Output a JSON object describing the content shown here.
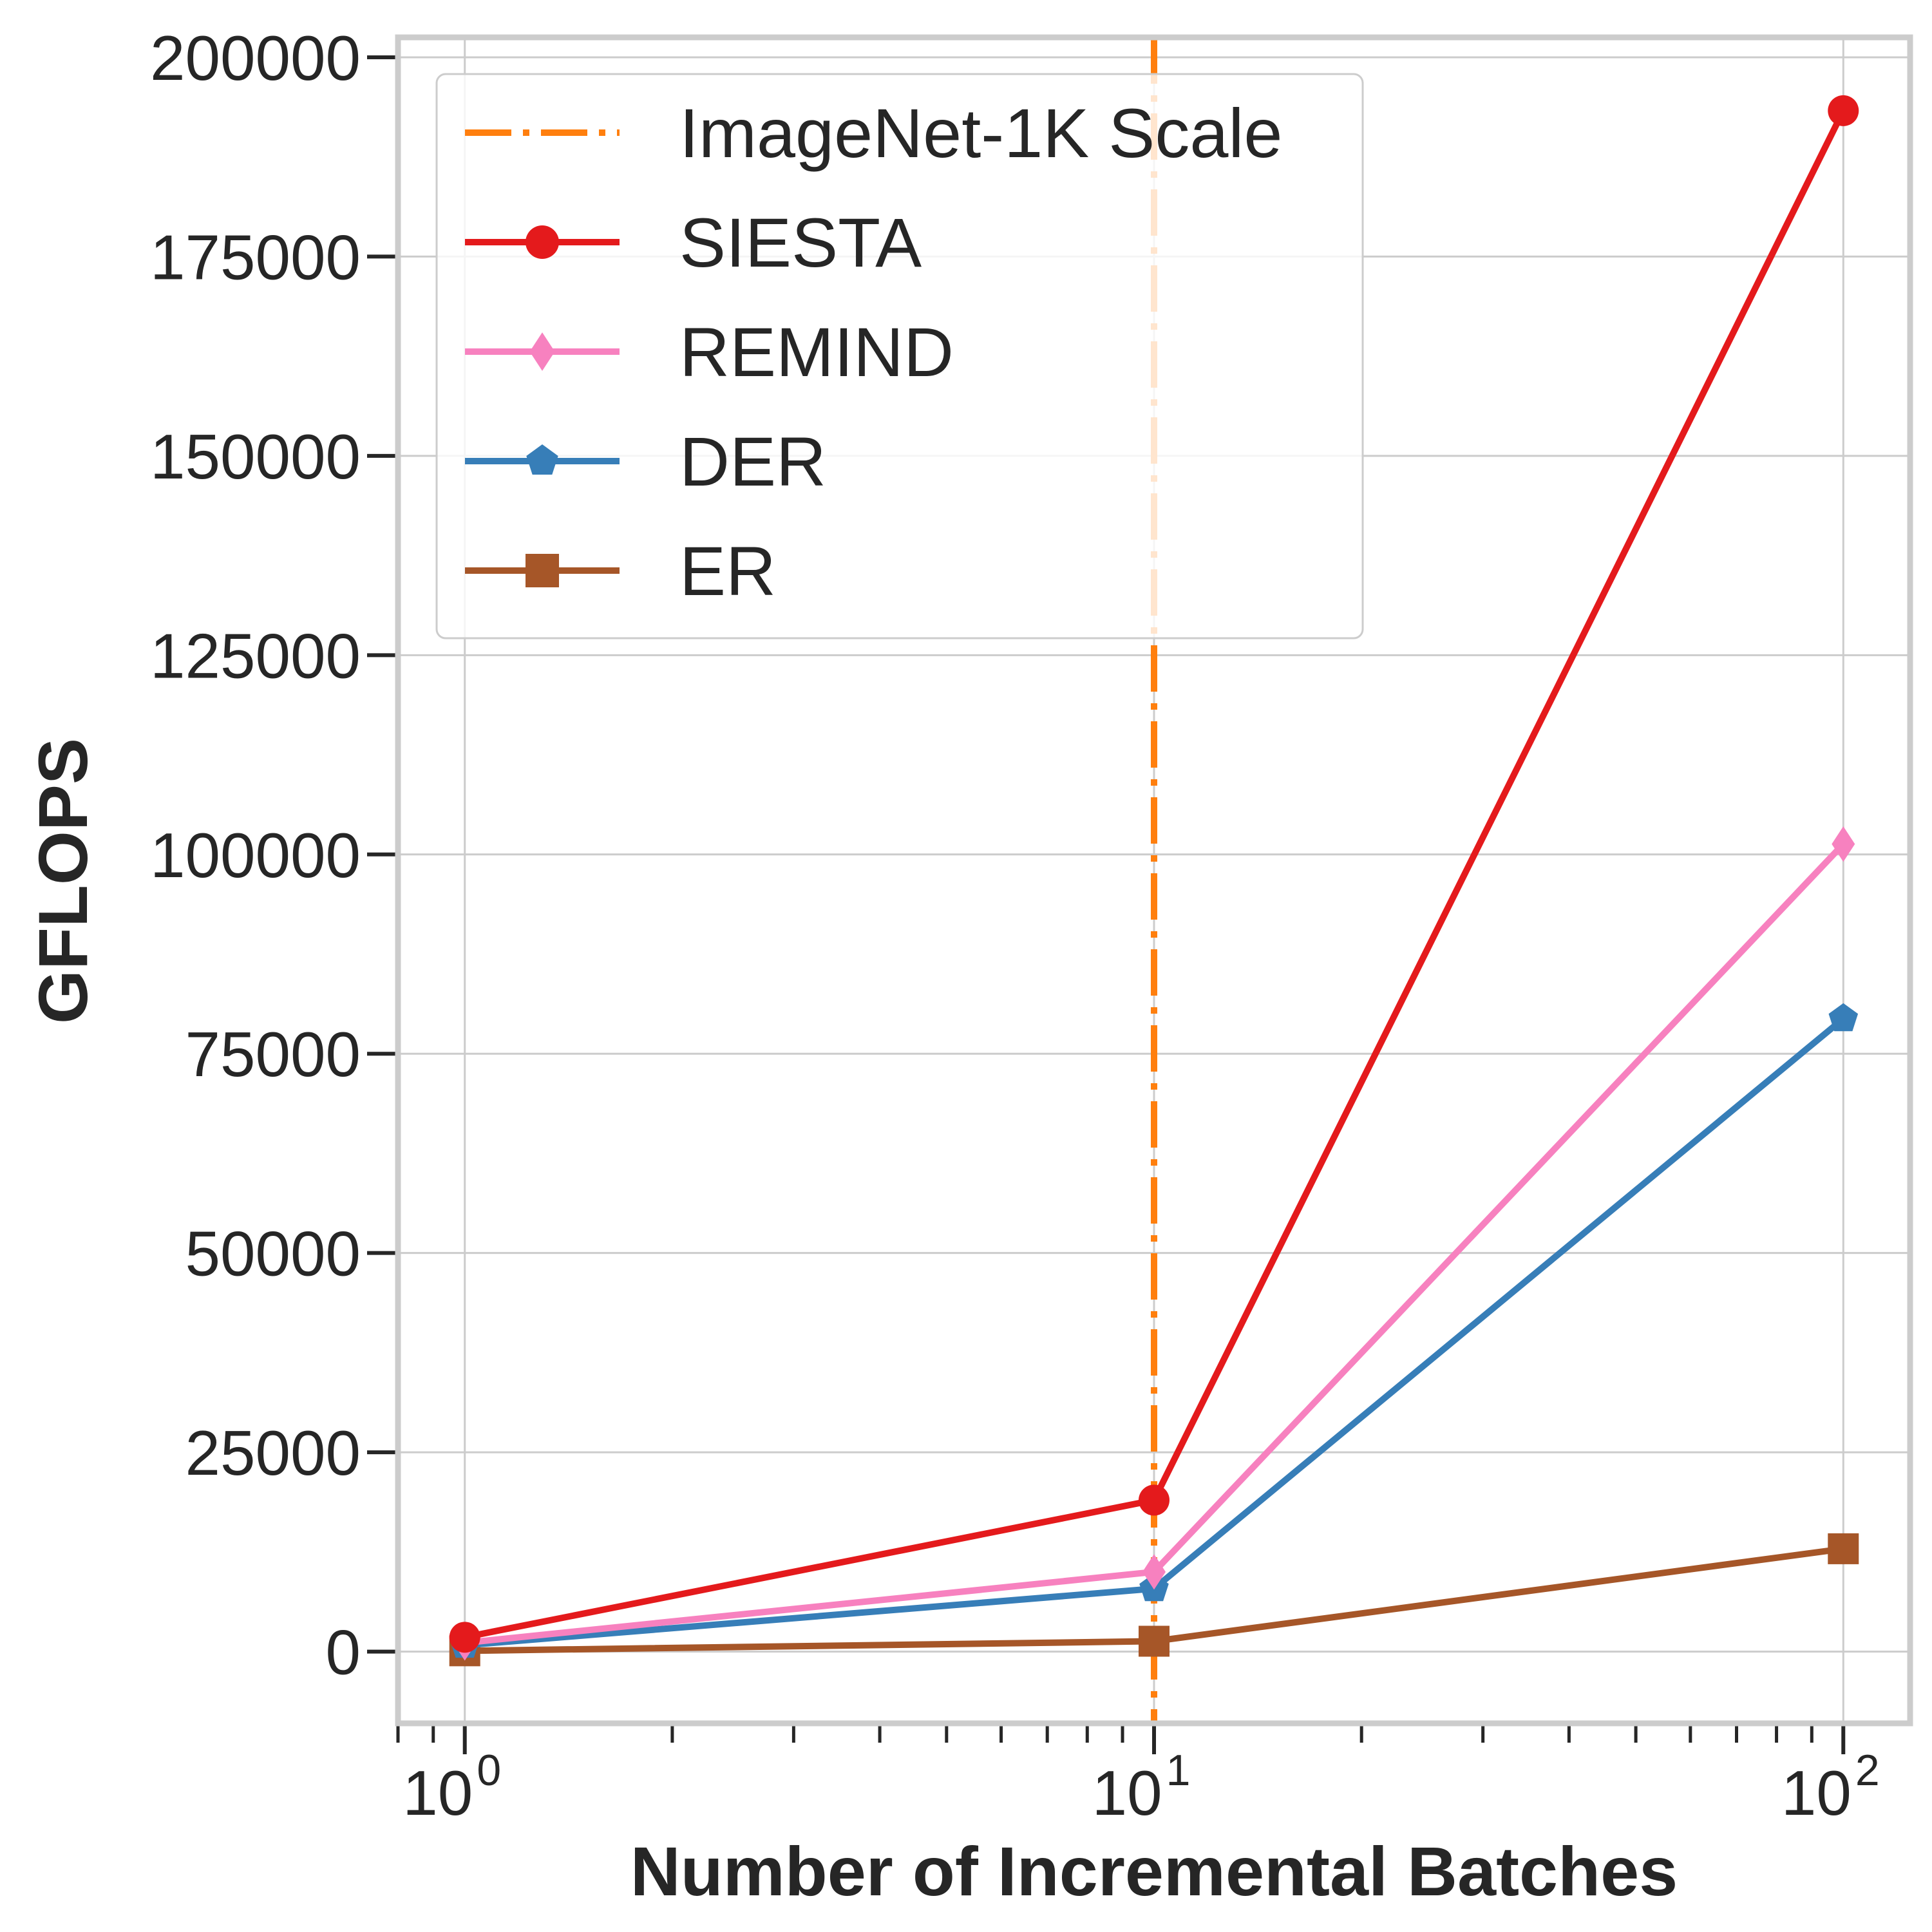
{
  "chart_data": {
    "type": "line",
    "title": "",
    "xlabel": "Number of Incremental Batches",
    "ylabel": "GFLOPS",
    "xscale": "log",
    "xlim": [
      0.8,
      125
    ],
    "ylim": [
      -9000,
      202500
    ],
    "x": [
      1,
      10,
      100
    ],
    "xtick_labels": [
      {
        "base": "10",
        "exp": "0",
        "value": 1
      },
      {
        "base": "10",
        "exp": "1",
        "value": 10
      },
      {
        "base": "10",
        "exp": "2",
        "value": 100
      }
    ],
    "yticks": [
      0,
      25000,
      50000,
      75000,
      100000,
      125000,
      150000,
      175000,
      200000
    ],
    "ytick_labels": [
      "0",
      "25000",
      "50000",
      "75000",
      "100000",
      "125000",
      "150000",
      "175000",
      "200000"
    ],
    "grid": true,
    "legend_position": "top-left",
    "reference_line": {
      "name": "ImageNet-1K Scale",
      "x": 10,
      "color": "#ff7f0e",
      "style": "dashdot"
    },
    "series": [
      {
        "name": "SIESTA",
        "values": [
          1800,
          19000,
          193300
        ],
        "color": "#e41a1c",
        "marker": "circle"
      },
      {
        "name": "REMIND",
        "values": [
          1100,
          10000,
          101300
        ],
        "color": "#f781bf",
        "marker": "diamond"
      },
      {
        "name": "DER",
        "values": [
          800,
          7900,
          79400
        ],
        "color": "#377eb8",
        "marker": "pentagon"
      },
      {
        "name": "ER",
        "values": [
          100,
          1300,
          12900
        ],
        "color": "#a65628",
        "marker": "square"
      }
    ]
  }
}
